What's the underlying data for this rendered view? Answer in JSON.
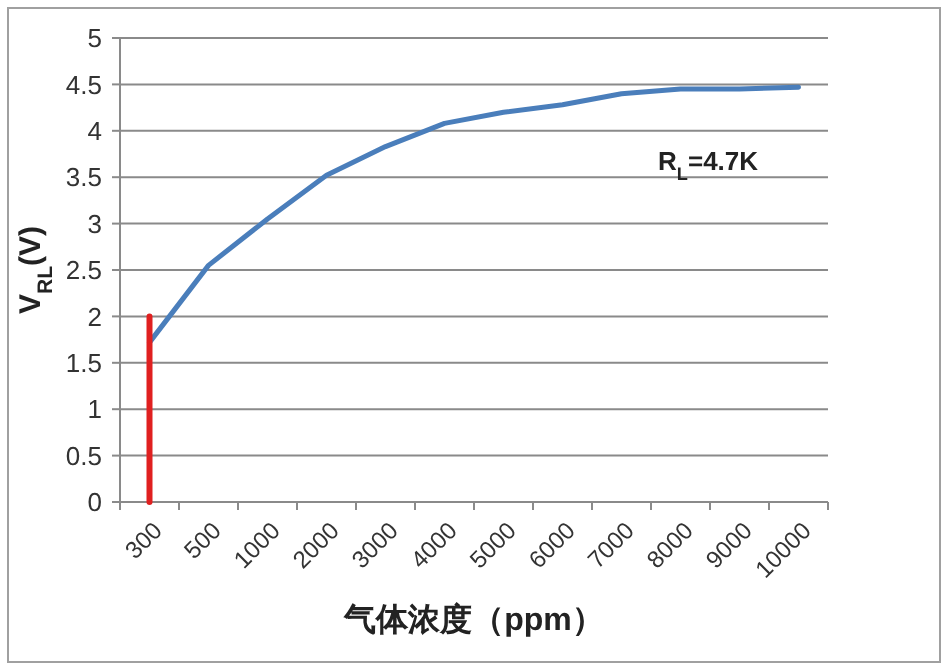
{
  "chart_data": {
    "type": "line",
    "ylabel": "V$_{RL}$(V)",
    "xlabel": "气体浓度（ppm）",
    "categories": [
      "300",
      "500",
      "1000",
      "2000",
      "3000",
      "4000",
      "5000",
      "6000",
      "7000",
      "8000",
      "9000",
      "10000"
    ],
    "series": [
      {
        "color": "#4a7ebb",
        "values": [
          1.72,
          2.55,
          3.05,
          3.52,
          3.83,
          4.08,
          4.2,
          4.28,
          4.4,
          4.45,
          4.45,
          4.47
        ]
      },
      {
        "color": "#e02020",
        "x": [
          "300",
          "300"
        ],
        "values": [
          0,
          2
        ]
      }
    ],
    "ylim": [
      0,
      5
    ],
    "yticks": [
      0,
      0.5,
      1,
      1.5,
      2,
      2.5,
      3,
      3.5,
      4,
      4.5,
      5
    ],
    "grid": "y",
    "marker": "none",
    "line_style": "solid",
    "annotations": [
      "R$_{L}$=4.7K"
    ]
  }
}
